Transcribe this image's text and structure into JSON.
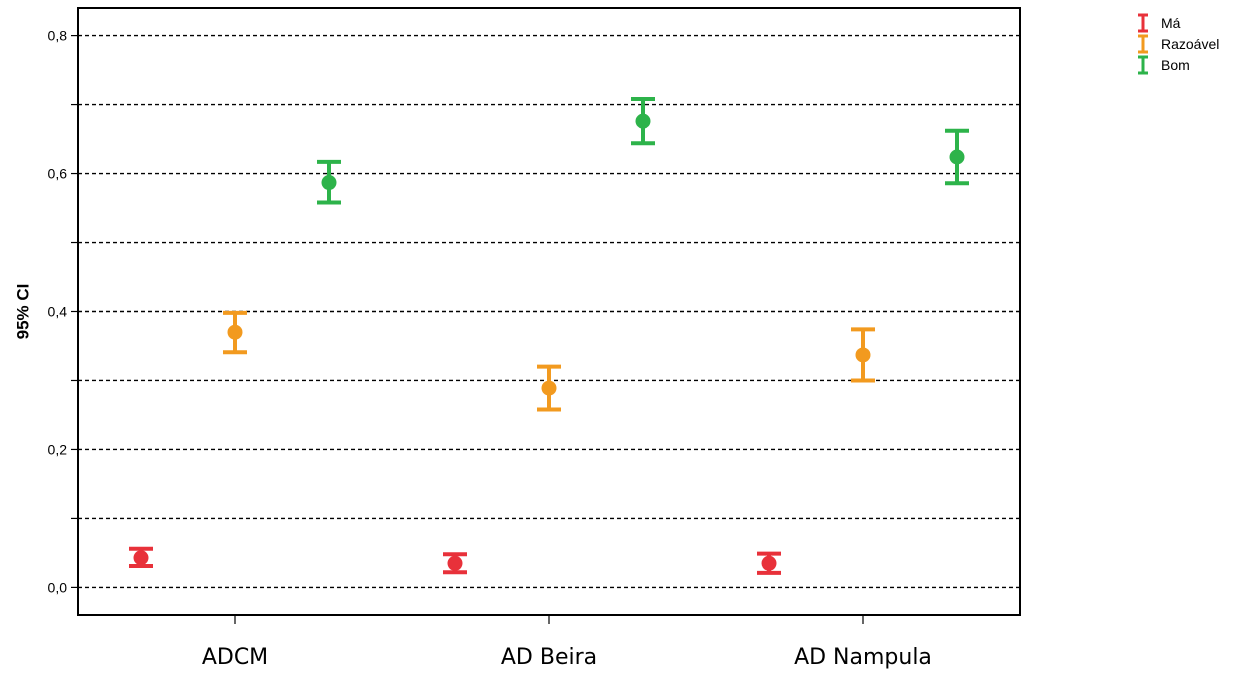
{
  "chart_data": {
    "type": "scatter",
    "subtype": "errorbar",
    "title": "",
    "xlabel": "",
    "ylabel": "95% CI",
    "categories": [
      "ADCM",
      "AD Beira",
      "AD Nampula"
    ],
    "ylim": [
      -0.04,
      0.84
    ],
    "y_ticks": [
      0.0,
      0.2,
      0.4,
      0.6,
      0.8
    ],
    "y_tick_labels": [
      "0,0",
      "0,2",
      "0,4",
      "0,6",
      "0,8"
    ],
    "y_minor_ticks": [
      0.1,
      0.3,
      0.5,
      0.7
    ],
    "grid": "dashed horizontal at every 0.1",
    "legend_position": "top-right, outside plot",
    "series": [
      {
        "name": "Má",
        "color": "#e8313a",
        "mean": [
          0.043,
          0.035,
          0.035
        ],
        "lower": [
          0.031,
          0.022,
          0.021
        ],
        "upper": [
          0.056,
          0.048,
          0.049
        ]
      },
      {
        "name": "Razoável",
        "color": "#f29a1f",
        "mean": [
          0.37,
          0.289,
          0.337
        ],
        "lower": [
          0.341,
          0.258,
          0.3
        ],
        "upper": [
          0.398,
          0.32,
          0.374
        ]
      },
      {
        "name": "Bom",
        "color": "#2db34a",
        "mean": [
          0.587,
          0.676,
          0.624
        ],
        "lower": [
          0.558,
          0.644,
          0.586
        ],
        "upper": [
          0.617,
          0.708,
          0.662
        ]
      }
    ]
  }
}
